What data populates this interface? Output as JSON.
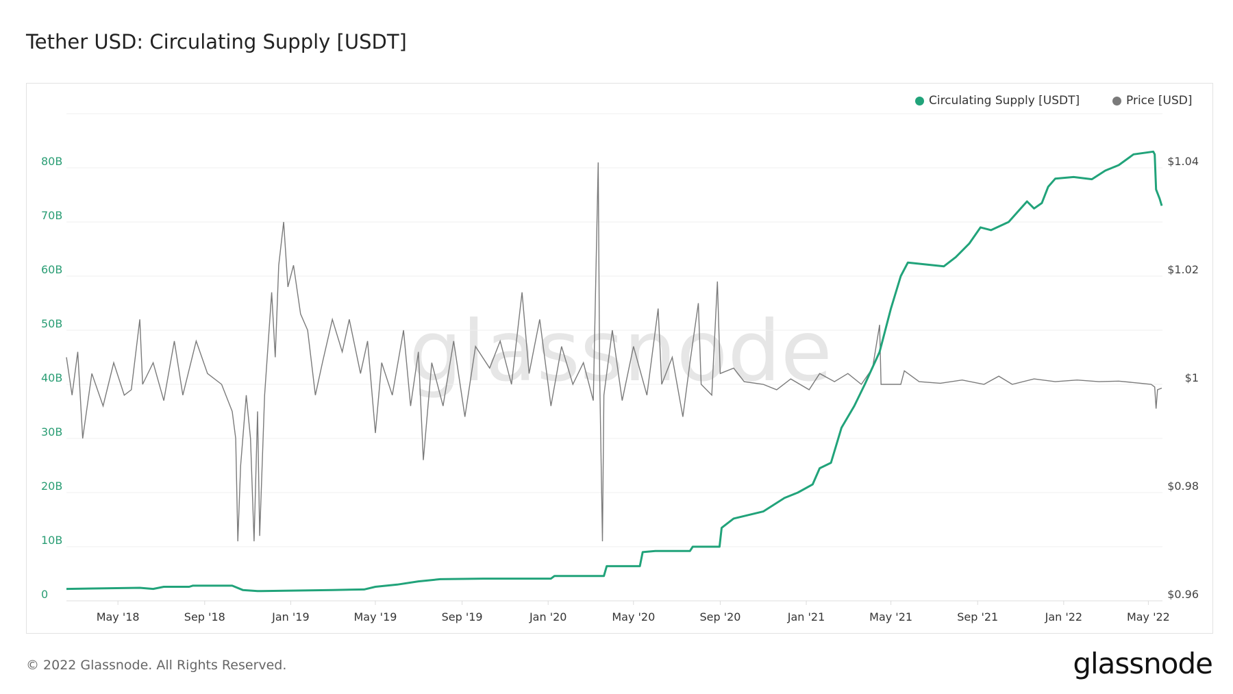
{
  "title": "Tether USD: Circulating Supply [USDT]",
  "footer": "© 2022 Glassnode. All Rights Reserved.",
  "logo": "glassnode",
  "watermark": "glassnode",
  "colors": {
    "supply": "#21a37a",
    "price": "#7a7a7a",
    "left_axis": "#2a9d74",
    "right_axis": "#444444",
    "grid": "#efefef"
  },
  "chart_data": {
    "type": "line",
    "title": "Tether USD: Circulating Supply [USDT]",
    "xlim": [
      "2018-02-17",
      "2022-05-21"
    ],
    "x_ticks": [
      {
        "date": "2018-05-01",
        "label": "May '18"
      },
      {
        "date": "2018-09-01",
        "label": "Sep '18"
      },
      {
        "date": "2019-01-01",
        "label": "Jan '19"
      },
      {
        "date": "2019-05-01",
        "label": "May '19"
      },
      {
        "date": "2019-09-01",
        "label": "Sep '19"
      },
      {
        "date": "2020-01-01",
        "label": "Jan '20"
      },
      {
        "date": "2020-05-01",
        "label": "May '20"
      },
      {
        "date": "2020-09-01",
        "label": "Sep '20"
      },
      {
        "date": "2021-01-01",
        "label": "Jan '21"
      },
      {
        "date": "2021-05-01",
        "label": "May '21"
      },
      {
        "date": "2021-09-01",
        "label": "Sep '21"
      },
      {
        "date": "2022-01-01",
        "label": "Jan '22"
      },
      {
        "date": "2022-05-01",
        "label": "May '22"
      }
    ],
    "y_left": {
      "ylim": [
        0,
        90
      ],
      "unit": "B",
      "ticks": [
        0,
        10,
        20,
        30,
        40,
        50,
        60,
        70,
        80
      ],
      "tick_labels": [
        "0",
        "10B",
        "20B",
        "30B",
        "40B",
        "50B",
        "60B",
        "70B",
        "80B"
      ]
    },
    "y_right": {
      "ylim": [
        0.96,
        1.05
      ],
      "ticks": [
        0.96,
        0.98,
        1.0,
        1.02,
        1.04
      ],
      "tick_labels": [
        "$0.96",
        "$0.98",
        "$1",
        "$1.02",
        "$1.04"
      ]
    },
    "grid": true,
    "legend": {
      "placement": "top-right",
      "entries": [
        "Circulating Supply [USDT]",
        "Price [USD]"
      ]
    },
    "series": [
      {
        "name": "Circulating Supply [USDT]",
        "axis": "left",
        "unit": "B USDT",
        "points": [
          [
            "2018-02-17",
            2.2
          ],
          [
            "2018-06-01",
            2.4
          ],
          [
            "2018-06-20",
            2.2
          ],
          [
            "2018-07-05",
            2.6
          ],
          [
            "2018-08-10",
            2.6
          ],
          [
            "2018-08-15",
            2.8
          ],
          [
            "2018-10-10",
            2.8
          ],
          [
            "2018-10-25",
            2.0
          ],
          [
            "2018-11-15",
            1.8
          ],
          [
            "2019-01-10",
            1.9
          ],
          [
            "2019-03-01",
            2.0
          ],
          [
            "2019-04-15",
            2.1
          ],
          [
            "2019-05-01",
            2.6
          ],
          [
            "2019-06-01",
            3.0
          ],
          [
            "2019-07-01",
            3.6
          ],
          [
            "2019-08-01",
            4.0
          ],
          [
            "2019-10-01",
            4.1
          ],
          [
            "2020-01-05",
            4.1
          ],
          [
            "2020-01-10",
            4.6
          ],
          [
            "2020-03-20",
            4.6
          ],
          [
            "2020-03-24",
            6.4
          ],
          [
            "2020-05-10",
            6.4
          ],
          [
            "2020-05-14",
            9.0
          ],
          [
            "2020-06-01",
            9.2
          ],
          [
            "2020-07-20",
            9.2
          ],
          [
            "2020-07-24",
            10.0
          ],
          [
            "2020-08-31",
            10.0
          ],
          [
            "2020-09-03",
            13.5
          ],
          [
            "2020-09-20",
            15.2
          ],
          [
            "2020-11-01",
            16.5
          ],
          [
            "2020-12-01",
            19.0
          ],
          [
            "2020-12-20",
            20.0
          ],
          [
            "2021-01-10",
            21.5
          ],
          [
            "2021-01-20",
            24.5
          ],
          [
            "2021-02-05",
            25.5
          ],
          [
            "2021-02-20",
            32.0
          ],
          [
            "2021-03-10",
            36.0
          ],
          [
            "2021-03-25",
            40.0
          ],
          [
            "2021-04-15",
            46.0
          ],
          [
            "2021-05-01",
            54.0
          ],
          [
            "2021-05-15",
            60.0
          ],
          [
            "2021-05-25",
            62.5
          ],
          [
            "2021-07-15",
            61.8
          ],
          [
            "2021-08-01",
            63.5
          ],
          [
            "2021-08-20",
            66.0
          ],
          [
            "2021-09-05",
            69.0
          ],
          [
            "2021-09-20",
            68.5
          ],
          [
            "2021-10-15",
            70.0
          ],
          [
            "2021-11-01",
            72.5
          ],
          [
            "2021-11-10",
            73.8
          ],
          [
            "2021-11-20",
            72.5
          ],
          [
            "2021-12-01",
            73.5
          ],
          [
            "2021-12-10",
            76.5
          ],
          [
            "2021-12-20",
            78.0
          ],
          [
            "2022-01-15",
            78.3
          ],
          [
            "2022-02-10",
            77.9
          ],
          [
            "2022-03-01",
            79.5
          ],
          [
            "2022-03-20",
            80.5
          ],
          [
            "2022-04-10",
            82.5
          ],
          [
            "2022-05-08",
            83.0
          ],
          [
            "2022-05-10",
            82.5
          ],
          [
            "2022-05-12",
            76.0
          ],
          [
            "2022-05-17",
            74.3
          ],
          [
            "2022-05-20",
            73.0
          ]
        ]
      },
      {
        "name": "Price [USD]",
        "axis": "right",
        "unit": "USD",
        "points": [
          [
            "2018-02-17",
            1.005
          ],
          [
            "2018-02-25",
            0.998
          ],
          [
            "2018-03-05",
            1.006
          ],
          [
            "2018-03-12",
            0.99
          ],
          [
            "2018-03-25",
            1.002
          ],
          [
            "2018-04-10",
            0.996
          ],
          [
            "2018-04-25",
            1.004
          ],
          [
            "2018-05-10",
            0.998
          ],
          [
            "2018-05-20",
            0.999
          ],
          [
            "2018-06-01",
            1.012
          ],
          [
            "2018-06-05",
            1.0
          ],
          [
            "2018-06-20",
            1.004
          ],
          [
            "2018-07-05",
            0.997
          ],
          [
            "2018-07-20",
            1.008
          ],
          [
            "2018-08-01",
            0.998
          ],
          [
            "2018-08-20",
            1.008
          ],
          [
            "2018-09-05",
            1.002
          ],
          [
            "2018-09-25",
            1.0
          ],
          [
            "2018-10-10",
            0.995
          ],
          [
            "2018-10-15",
            0.99
          ],
          [
            "2018-10-18",
            0.971
          ],
          [
            "2018-10-22",
            0.985
          ],
          [
            "2018-10-30",
            0.998
          ],
          [
            "2018-11-05",
            0.99
          ],
          [
            "2018-11-10",
            0.971
          ],
          [
            "2018-11-15",
            0.995
          ],
          [
            "2018-11-18",
            0.972
          ],
          [
            "2018-11-25",
            0.998
          ],
          [
            "2018-12-05",
            1.017
          ],
          [
            "2018-12-10",
            1.005
          ],
          [
            "2018-12-15",
            1.022
          ],
          [
            "2018-12-22",
            1.03
          ],
          [
            "2018-12-28",
            1.018
          ],
          [
            "2019-01-05",
            1.022
          ],
          [
            "2019-01-15",
            1.013
          ],
          [
            "2019-01-25",
            1.01
          ],
          [
            "2019-02-05",
            0.998
          ],
          [
            "2019-02-15",
            1.004
          ],
          [
            "2019-03-01",
            1.012
          ],
          [
            "2019-03-15",
            1.006
          ],
          [
            "2019-03-25",
            1.012
          ],
          [
            "2019-04-10",
            1.002
          ],
          [
            "2019-04-20",
            1.008
          ],
          [
            "2019-05-01",
            0.991
          ],
          [
            "2019-05-10",
            1.004
          ],
          [
            "2019-05-25",
            0.998
          ],
          [
            "2019-06-10",
            1.01
          ],
          [
            "2019-06-20",
            0.996
          ],
          [
            "2019-07-01",
            1.006
          ],
          [
            "2019-07-08",
            0.986
          ],
          [
            "2019-07-20",
            1.004
          ],
          [
            "2019-08-05",
            0.996
          ],
          [
            "2019-08-20",
            1.008
          ],
          [
            "2019-09-05",
            0.994
          ],
          [
            "2019-09-20",
            1.007
          ],
          [
            "2019-10-10",
            1.003
          ],
          [
            "2019-10-25",
            1.008
          ],
          [
            "2019-11-10",
            1.0
          ],
          [
            "2019-11-25",
            1.017
          ],
          [
            "2019-12-05",
            1.002
          ],
          [
            "2019-12-20",
            1.012
          ],
          [
            "2020-01-05",
            0.996
          ],
          [
            "2020-01-20",
            1.007
          ],
          [
            "2020-02-05",
            1.0
          ],
          [
            "2020-02-20",
            1.004
          ],
          [
            "2020-03-05",
            0.997
          ],
          [
            "2020-03-12",
            1.041
          ],
          [
            "2020-03-14",
            1.002
          ],
          [
            "2020-03-18",
            0.971
          ],
          [
            "2020-03-20",
            0.998
          ],
          [
            "2020-04-01",
            1.01
          ],
          [
            "2020-04-15",
            0.997
          ],
          [
            "2020-05-01",
            1.007
          ],
          [
            "2020-05-20",
            0.998
          ],
          [
            "2020-06-05",
            1.014
          ],
          [
            "2020-06-10",
            1.0
          ],
          [
            "2020-06-25",
            1.005
          ],
          [
            "2020-07-10",
            0.994
          ],
          [
            "2020-07-20",
            1.004
          ],
          [
            "2020-08-01",
            1.015
          ],
          [
            "2020-08-05",
            1.0
          ],
          [
            "2020-08-20",
            0.998
          ],
          [
            "2020-08-28",
            1.019
          ],
          [
            "2020-09-01",
            1.002
          ],
          [
            "2020-09-20",
            1.003
          ],
          [
            "2020-10-05",
            1.0005
          ],
          [
            "2020-11-01",
            1.0
          ],
          [
            "2020-11-20",
            0.999
          ],
          [
            "2020-12-10",
            1.001
          ],
          [
            "2021-01-05",
            0.999
          ],
          [
            "2021-01-20",
            1.002
          ],
          [
            "2021-02-10",
            1.0005
          ],
          [
            "2021-03-01",
            1.002
          ],
          [
            "2021-03-20",
            1.0
          ],
          [
            "2021-04-05",
            1.003
          ],
          [
            "2021-04-15",
            1.011
          ],
          [
            "2021-04-17",
            1.0
          ],
          [
            "2021-05-15",
            1.0
          ],
          [
            "2021-05-20",
            1.0025
          ],
          [
            "2021-06-10",
            1.0005
          ],
          [
            "2021-07-10",
            1.0002
          ],
          [
            "2021-08-10",
            1.0008
          ],
          [
            "2021-09-10",
            1.0
          ],
          [
            "2021-10-01",
            1.0015
          ],
          [
            "2021-10-20",
            1.0
          ],
          [
            "2021-11-20",
            1.001
          ],
          [
            "2021-12-20",
            1.0005
          ],
          [
            "2022-01-20",
            1.0008
          ],
          [
            "2022-02-20",
            1.0005
          ],
          [
            "2022-03-20",
            1.0006
          ],
          [
            "2022-04-20",
            1.0002
          ],
          [
            "2022-05-05",
            1.0
          ],
          [
            "2022-05-10",
            0.9995
          ],
          [
            "2022-05-12",
            0.9955
          ],
          [
            "2022-05-14",
            0.999
          ],
          [
            "2022-05-20",
            0.9993
          ]
        ]
      }
    ]
  }
}
